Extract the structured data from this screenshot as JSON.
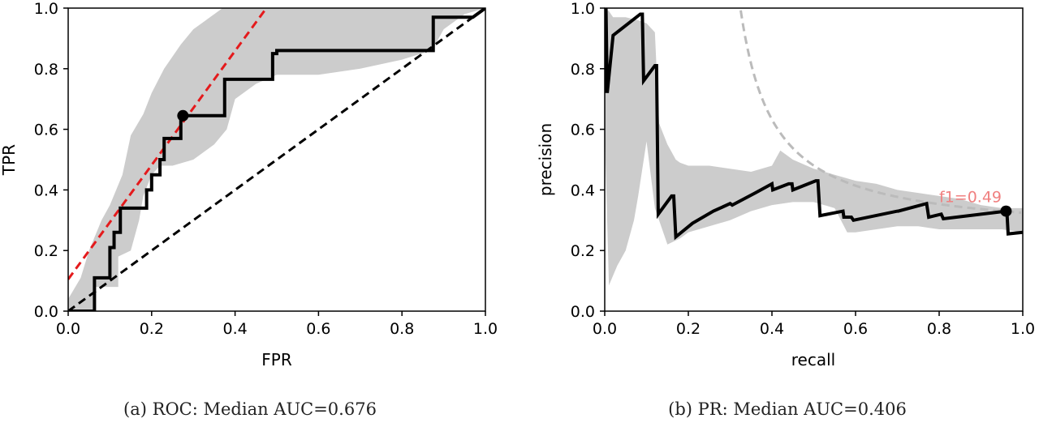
{
  "chart_data": [
    {
      "type": "line",
      "caption": "(a) ROC: Median AUC=0.676",
      "xlabel": "FPR",
      "ylabel": "TPR",
      "xlim": [
        0,
        1
      ],
      "ylim": [
        0,
        1
      ],
      "xticks": [
        "0.0",
        "0.2",
        "0.4",
        "0.6",
        "0.8",
        "1.0"
      ],
      "yticks": [
        "0.0",
        "0.2",
        "0.4",
        "0.6",
        "0.8",
        "1.0"
      ],
      "grid": false,
      "band_color": "#cccccc",
      "series": [
        {
          "role": "median-curve",
          "color": "#000000",
          "x": [
            0.0,
            0.063,
            0.063,
            0.1,
            0.1,
            0.11,
            0.11,
            0.125,
            0.125,
            0.188,
            0.188,
            0.2,
            0.2,
            0.22,
            0.22,
            0.23,
            0.23,
            0.27,
            0.27,
            0.28,
            0.28,
            0.375,
            0.375,
            0.44,
            0.44,
            0.49,
            0.49,
            0.5,
            0.5,
            0.875,
            0.875,
            0.97,
            0.97,
            1.0
          ],
          "y": [
            0.0,
            0.0,
            0.11,
            0.11,
            0.21,
            0.21,
            0.26,
            0.26,
            0.34,
            0.34,
            0.4,
            0.4,
            0.45,
            0.45,
            0.5,
            0.5,
            0.57,
            0.57,
            0.64,
            0.64,
            0.645,
            0.645,
            0.765,
            0.765,
            0.765,
            0.765,
            0.85,
            0.85,
            0.86,
            0.86,
            0.97,
            0.97,
            0.97,
            1.0
          ]
        },
        {
          "role": "upper-band",
          "x": [
            0.0,
            0.03,
            0.05,
            0.08,
            0.1,
            0.13,
            0.15,
            0.18,
            0.2,
            0.23,
            0.27,
            0.3,
            0.33,
            0.35,
            0.37,
            0.4,
            0.45,
            0.5,
            0.55,
            0.62,
            0.7,
            0.8,
            0.875,
            0.88,
            0.9,
            0.95,
            0.97,
            1.0
          ],
          "y": [
            0.04,
            0.11,
            0.2,
            0.3,
            0.35,
            0.45,
            0.58,
            0.65,
            0.72,
            0.8,
            0.88,
            0.93,
            0.96,
            0.98,
            1.0,
            1.0,
            1.0,
            1.0,
            1.0,
            1.0,
            1.0,
            1.0,
            1.0,
            1.0,
            1.0,
            1.0,
            1.0,
            1.0
          ]
        },
        {
          "role": "lower-band",
          "x": [
            0.0,
            0.063,
            0.063,
            0.12,
            0.12,
            0.15,
            0.17,
            0.18,
            0.2,
            0.22,
            0.25,
            0.3,
            0.35,
            0.38,
            0.4,
            0.45,
            0.5,
            0.55,
            0.6,
            0.7,
            0.8,
            0.87,
            0.88,
            0.9,
            0.95,
            1.0
          ],
          "y": [
            0.0,
            0.0,
            0.08,
            0.08,
            0.18,
            0.2,
            0.3,
            0.38,
            0.45,
            0.48,
            0.48,
            0.5,
            0.55,
            0.6,
            0.7,
            0.75,
            0.78,
            0.78,
            0.78,
            0.8,
            0.83,
            0.86,
            0.88,
            0.93,
            0.98,
            1.0
          ]
        },
        {
          "role": "chance-diagonal",
          "color": "#000000",
          "dashed": true,
          "x": [
            0.0,
            1.0
          ],
          "y": [
            0.0,
            1.0
          ]
        },
        {
          "role": "optimal-tangent",
          "color": "#e41a1c",
          "dashed": true,
          "x": [
            0.0,
            0.475
          ],
          "y": [
            0.105,
            1.0
          ]
        }
      ],
      "marker": {
        "x": 0.275,
        "y": 0.645,
        "color": "#000000"
      }
    },
    {
      "type": "line",
      "caption": "(b) PR: Median AUC=0.406",
      "xlabel": "recall",
      "ylabel": "precision",
      "xlim": [
        0,
        1
      ],
      "ylim": [
        0,
        1
      ],
      "xticks": [
        "0.0",
        "0.2",
        "0.4",
        "0.6",
        "0.8",
        "1.0"
      ],
      "yticks": [
        "0.0",
        "0.2",
        "0.4",
        "0.6",
        "0.8",
        "1.0"
      ],
      "grid": false,
      "band_color": "#cccccc",
      "series": [
        {
          "role": "median-curve",
          "color": "#000000",
          "x": [
            0.0,
            0.003,
            0.006,
            0.02,
            0.085,
            0.09,
            0.093,
            0.12,
            0.124,
            0.128,
            0.16,
            0.165,
            0.17,
            0.21,
            0.26,
            0.3,
            0.305,
            0.36,
            0.4,
            0.402,
            0.44,
            0.448,
            0.45,
            0.505,
            0.51,
            0.515,
            0.57,
            0.572,
            0.59,
            0.595,
            0.7,
            0.702,
            0.77,
            0.775,
            0.805,
            0.81,
            0.96,
            0.962,
            0.965,
            1.0
          ],
          "y": [
            0.72,
            1.0,
            0.72,
            0.91,
            0.98,
            0.98,
            0.76,
            0.81,
            0.81,
            0.32,
            0.38,
            0.38,
            0.245,
            0.29,
            0.33,
            0.355,
            0.35,
            0.39,
            0.42,
            0.4,
            0.42,
            0.42,
            0.4,
            0.43,
            0.43,
            0.315,
            0.33,
            0.31,
            0.31,
            0.3,
            0.33,
            0.33,
            0.355,
            0.31,
            0.32,
            0.305,
            0.33,
            0.33,
            0.255,
            0.26
          ]
        },
        {
          "role": "upper-band",
          "x": [
            0.0,
            0.01,
            0.02,
            0.05,
            0.08,
            0.1,
            0.12,
            0.13,
            0.15,
            0.17,
            0.18,
            0.2,
            0.25,
            0.3,
            0.35,
            0.4,
            0.42,
            0.45,
            0.5,
            0.55,
            0.6,
            0.65,
            0.7,
            0.75,
            0.8,
            0.85,
            0.9,
            0.95,
            1.0
          ],
          "y": [
            1.0,
            0.99,
            0.97,
            0.97,
            0.96,
            0.95,
            0.92,
            0.62,
            0.55,
            0.5,
            0.49,
            0.48,
            0.48,
            0.47,
            0.46,
            0.48,
            0.53,
            0.5,
            0.47,
            0.45,
            0.43,
            0.42,
            0.4,
            0.39,
            0.38,
            0.37,
            0.35,
            0.34,
            0.34
          ]
        },
        {
          "role": "lower-band",
          "x": [
            0.0,
            0.01,
            0.03,
            0.05,
            0.07,
            0.08,
            0.1,
            0.12,
            0.15,
            0.18,
            0.2,
            0.25,
            0.3,
            0.35,
            0.4,
            0.45,
            0.5,
            0.55,
            0.58,
            0.6,
            0.65,
            0.7,
            0.75,
            0.8,
            0.85,
            0.9,
            0.95,
            1.0
          ],
          "y": [
            0.6,
            0.085,
            0.15,
            0.2,
            0.3,
            0.38,
            0.56,
            0.34,
            0.22,
            0.24,
            0.26,
            0.28,
            0.3,
            0.33,
            0.35,
            0.36,
            0.36,
            0.34,
            0.26,
            0.26,
            0.27,
            0.28,
            0.28,
            0.27,
            0.27,
            0.27,
            0.27,
            0.26
          ]
        },
        {
          "role": "iso-f1",
          "color": "#bbbbbb",
          "dashed": true,
          "f1": 0.49
        }
      ],
      "marker": {
        "x": 0.96,
        "y": 0.33,
        "color": "#000000"
      },
      "annotation": {
        "text": "f1=0.49",
        "x": 0.8,
        "y": 0.36,
        "color": "#f08080"
      }
    }
  ]
}
